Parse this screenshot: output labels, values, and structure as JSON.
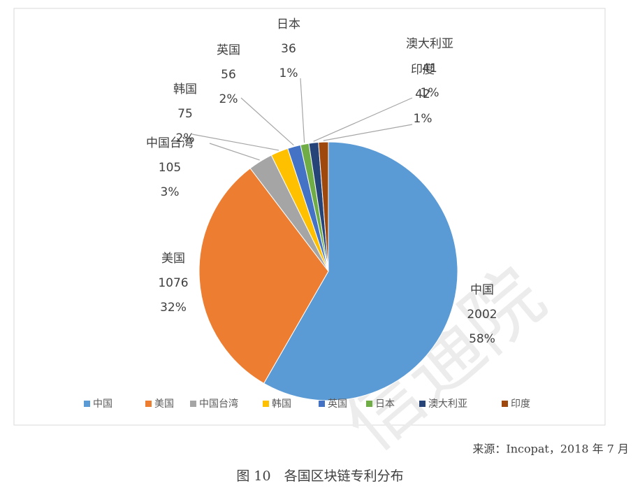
{
  "chart_data": {
    "type": "pie",
    "categories": [
      "中国",
      "美国",
      "中国台湾",
      "韩国",
      "英国",
      "日本",
      "澳大利亚",
      "印度"
    ],
    "values": [
      2002,
      1076,
      105,
      75,
      56,
      36,
      41,
      42
    ],
    "percent_labels": [
      "58%",
      "32%",
      "3%",
      "2%",
      "2%",
      "1%",
      "1%",
      "1%"
    ],
    "colors": [
      "#5b9bd5",
      "#ed7d31",
      "#a5a5a5",
      "#ffc000",
      "#4472c4",
      "#70ad47",
      "#264478",
      "#9e480e"
    ],
    "legend": "bottom",
    "source": "来源：Incopat，2018 年 7 月",
    "caption": "图 10　各国区块链专利分布",
    "watermark": "信通院"
  }
}
